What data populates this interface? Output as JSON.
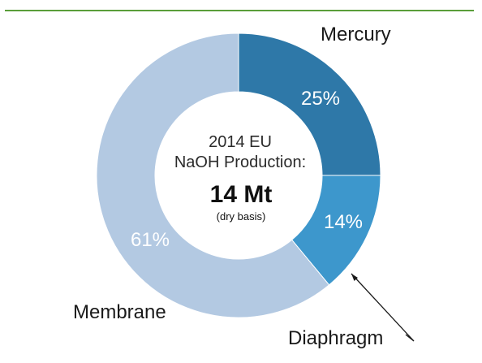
{
  "colors": {
    "rule": "#5a9e3a",
    "background": "#ffffff",
    "label_dark": "#1a1a1a",
    "label_light": "#ffffff",
    "center_text": "#2b2b2b",
    "leader": "#1a1a1a"
  },
  "chart_data": {
    "type": "pie",
    "variant": "donut",
    "legend": "none",
    "slices": [
      {
        "name": "Mercury",
        "value": 25,
        "label": "25%",
        "color": "#2e78a8"
      },
      {
        "name": "Diaphragm",
        "value": 14,
        "label": "14%",
        "color": "#3d97cc"
      },
      {
        "name": "Membrane",
        "value": 61,
        "label": "61%",
        "color": "#b3c9e2"
      }
    ],
    "center": {
      "line1": "2014 EU",
      "line2": "NaOH Production:",
      "total": "14 Mt",
      "note": "(dry basis)"
    }
  }
}
